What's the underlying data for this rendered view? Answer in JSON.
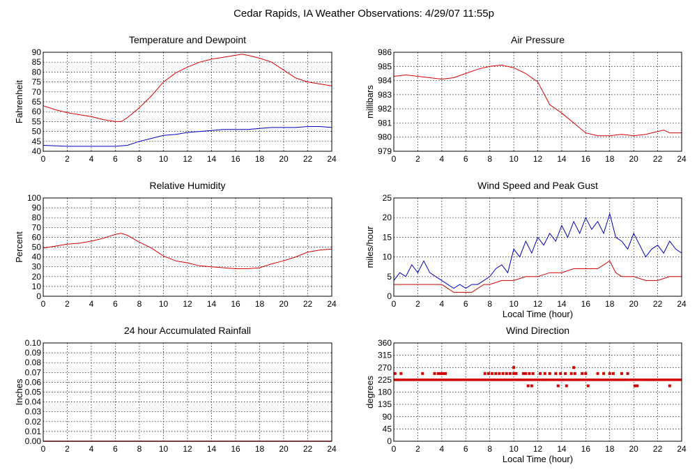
{
  "page_title": "Cedar Rapids, IA Weather Observations: 4/29/07 11:55p",
  "colors": {
    "red": "#d40000",
    "blue": "#0000c0"
  },
  "chart_data": [
    {
      "id": "temp",
      "type": "line",
      "title": "Temperature and Dewpoint",
      "xlabel": "",
      "ylabel": "Fahrenheit",
      "xlim": [
        0,
        24
      ],
      "ylim": [
        40,
        90
      ],
      "xticks": [
        0,
        2,
        4,
        6,
        8,
        10,
        12,
        14,
        16,
        18,
        20,
        22,
        24
      ],
      "yticks": [
        40,
        45,
        50,
        55,
        60,
        65,
        70,
        75,
        80,
        85,
        90
      ],
      "grid": true,
      "series": [
        {
          "color": "red",
          "x": [
            0,
            1,
            2,
            3,
            4,
            5,
            6,
            6.5,
            7,
            8,
            9,
            10,
            11,
            12,
            13,
            14,
            15,
            16,
            16.5,
            17,
            18,
            19,
            20,
            21,
            22,
            23,
            24
          ],
          "y": [
            63,
            61,
            59.5,
            58.5,
            57.5,
            56,
            55,
            55,
            57,
            62,
            68,
            75,
            79.5,
            82.5,
            85,
            86.5,
            87.5,
            88.5,
            89,
            88.5,
            87,
            85,
            81,
            77,
            75,
            74,
            73
          ]
        },
        {
          "color": "blue",
          "x": [
            0,
            2,
            4,
            6,
            7,
            8,
            9,
            10,
            11,
            12,
            13,
            14,
            15,
            16,
            17,
            18,
            19,
            20,
            21,
            22,
            23,
            24
          ],
          "y": [
            43,
            42.5,
            42.5,
            42.5,
            43,
            45,
            46.5,
            48,
            48.5,
            49.5,
            50,
            50.5,
            51,
            51,
            51,
            51.5,
            52,
            52,
            52,
            52.5,
            52.5,
            52
          ]
        }
      ]
    },
    {
      "id": "pressure",
      "type": "line",
      "title": "Air Pressure",
      "xlabel": "",
      "ylabel": "millibars",
      "xlim": [
        0,
        24
      ],
      "ylim": [
        979,
        986
      ],
      "xticks": [
        0,
        2,
        4,
        6,
        8,
        10,
        12,
        14,
        16,
        18,
        20,
        22,
        24
      ],
      "yticks": [
        979,
        980,
        981,
        982,
        983,
        984,
        985,
        986
      ],
      "grid": true,
      "series": [
        {
          "color": "red",
          "x": [
            0,
            1,
            2,
            3,
            4,
            5,
            6,
            7,
            8,
            9,
            9.5,
            10,
            11,
            12,
            13,
            14,
            15,
            16,
            17,
            18,
            19,
            20,
            21,
            22,
            22.5,
            23,
            24
          ],
          "y": [
            984.3,
            984.4,
            984.3,
            984.2,
            984.1,
            984.2,
            984.5,
            984.8,
            985.0,
            985.1,
            985.0,
            984.9,
            984.5,
            983.9,
            982.3,
            981.7,
            981.0,
            980.3,
            980.1,
            980.1,
            980.2,
            980.1,
            980.2,
            980.4,
            980.5,
            980.3,
            980.3
          ]
        }
      ]
    },
    {
      "id": "humidity",
      "type": "line",
      "title": "Relative Humidity",
      "xlabel": "",
      "ylabel": "Percent",
      "xlim": [
        0,
        24
      ],
      "ylim": [
        0,
        100
      ],
      "xticks": [
        0,
        2,
        4,
        6,
        8,
        10,
        12,
        14,
        16,
        18,
        20,
        22,
        24
      ],
      "yticks": [
        0,
        10,
        20,
        30,
        40,
        50,
        60,
        70,
        80,
        90,
        100
      ],
      "grid": true,
      "series": [
        {
          "color": "red",
          "x": [
            0,
            1,
            2,
            3,
            4,
            5,
            6,
            6.5,
            7,
            8,
            9,
            10,
            11,
            12,
            13,
            14,
            15,
            16,
            17,
            18,
            19,
            20,
            21,
            22,
            23,
            24
          ],
          "y": [
            49,
            51,
            53,
            54,
            56,
            59,
            63,
            64,
            62,
            55,
            49,
            41,
            36,
            34,
            31,
            30,
            29,
            28,
            28,
            29,
            33,
            36,
            40,
            45,
            47,
            48
          ]
        }
      ]
    },
    {
      "id": "wind",
      "type": "line",
      "title": "Wind Speed and Peak Gust",
      "xlabel": "Local Time (hour)",
      "ylabel": "miles/hour",
      "xlim": [
        0,
        24
      ],
      "ylim": [
        0,
        25
      ],
      "xticks": [
        0,
        2,
        4,
        6,
        8,
        10,
        12,
        14,
        16,
        18,
        20,
        22,
        24
      ],
      "yticks": [
        0,
        5,
        10,
        15,
        20,
        25
      ],
      "grid": true,
      "series": [
        {
          "color": "blue",
          "x": [
            0,
            0.5,
            1,
            1.5,
            2,
            2.5,
            3,
            3.5,
            4,
            4.5,
            5,
            5.5,
            6,
            6.5,
            7,
            7.5,
            8,
            8.5,
            9,
            9.5,
            10,
            10.5,
            11,
            11.5,
            12,
            12.5,
            13,
            13.5,
            14,
            14.5,
            15,
            15.5,
            16,
            16.5,
            17,
            17.5,
            18,
            18.5,
            19,
            19.5,
            20,
            20.5,
            21,
            21.5,
            22,
            22.5,
            23,
            23.5,
            24
          ],
          "y": [
            4,
            6,
            5,
            8,
            6,
            9,
            6,
            5,
            4,
            3,
            2,
            3,
            2,
            3,
            3,
            4,
            5,
            7,
            8,
            6,
            12,
            10,
            14,
            11,
            15,
            13,
            16,
            14,
            18,
            15,
            19,
            16,
            20,
            17,
            19,
            16,
            21,
            15,
            14,
            12,
            16,
            13,
            10,
            12,
            13,
            11,
            14,
            12,
            11
          ]
        },
        {
          "color": "red",
          "x": [
            0,
            1,
            2,
            3,
            4,
            4.5,
            5,
            6,
            6.5,
            7,
            7.5,
            8,
            9,
            10,
            11,
            12,
            13,
            14,
            15,
            16,
            17,
            17.5,
            18,
            18.5,
            19,
            20,
            21,
            22,
            23,
            24
          ],
          "y": [
            3,
            3,
            3,
            3,
            3,
            2,
            1,
            1,
            1,
            2,
            3,
            3,
            4,
            4,
            5,
            5,
            6,
            6,
            7,
            7,
            7,
            8,
            9,
            6,
            5,
            5,
            4,
            4,
            5,
            5
          ]
        }
      ]
    },
    {
      "id": "rain",
      "type": "line",
      "title": "24 hour Accumulated Rainfall",
      "xlabel": "",
      "ylabel": "Inches",
      "xlim": [
        0,
        24
      ],
      "ylim": [
        0,
        0.1
      ],
      "xticks": [
        0,
        2,
        4,
        6,
        8,
        10,
        12,
        14,
        16,
        18,
        20,
        22,
        24
      ],
      "yticks": [
        0.0,
        0.01,
        0.02,
        0.03,
        0.04,
        0.05,
        0.06,
        0.07,
        0.08,
        0.09,
        0.1
      ],
      "ytick_labels": [
        "0.00",
        "0.01",
        "0.02",
        "0.03",
        "0.04",
        "0.05",
        "0.06",
        "0.07",
        "0.08",
        "0.09",
        "0.10"
      ],
      "grid": true,
      "series": [
        {
          "color": "red",
          "x": [
            0,
            24
          ],
          "y": [
            0,
            0
          ]
        }
      ]
    },
    {
      "id": "direction",
      "type": "scatter",
      "title": "Wind Direction",
      "xlabel": "Local Time (hour)",
      "ylabel": "degrees",
      "xlim": [
        0,
        24
      ],
      "ylim": [
        0,
        360
      ],
      "xticks": [
        0,
        2,
        4,
        6,
        8,
        10,
        12,
        14,
        16,
        18,
        20,
        22,
        24
      ],
      "yticks": [
        0,
        45,
        90,
        135,
        180,
        225,
        270,
        315,
        360
      ],
      "grid": true,
      "series": [
        {
          "color": "red",
          "continuous_line": {
            "x": [
              0,
              24
            ],
            "y": [
              225,
              225
            ]
          },
          "x": [
            0.1,
            0.6,
            2.4,
            3.4,
            3.7,
            3.9,
            4.1,
            4.3,
            7.6,
            7.9,
            8.2,
            8.5,
            8.8,
            9.1,
            9.4,
            9.7,
            10.0,
            10.2,
            10.8,
            11.0,
            11.3,
            11.6,
            12.2,
            12.6,
            13.0,
            13.5,
            13.9,
            14.3,
            14.8,
            15.1,
            15.7,
            16.0,
            17.0,
            17.5,
            18.0,
            18.3,
            19.0,
            19.5,
            11.2,
            11.5,
            13.7,
            14.4,
            16.2,
            20.1,
            20.3,
            23.0,
            15.0,
            10.0
          ],
          "y": [
            248,
            248,
            248,
            248,
            248,
            248,
            248,
            248,
            248,
            248,
            248,
            248,
            248,
            248,
            248,
            248,
            248,
            248,
            248,
            248,
            248,
            248,
            248,
            248,
            248,
            248,
            248,
            248,
            248,
            248,
            248,
            248,
            248,
            248,
            248,
            248,
            248,
            248,
            203,
            203,
            203,
            203,
            203,
            203,
            203,
            203,
            270,
            270
          ]
        }
      ]
    }
  ]
}
